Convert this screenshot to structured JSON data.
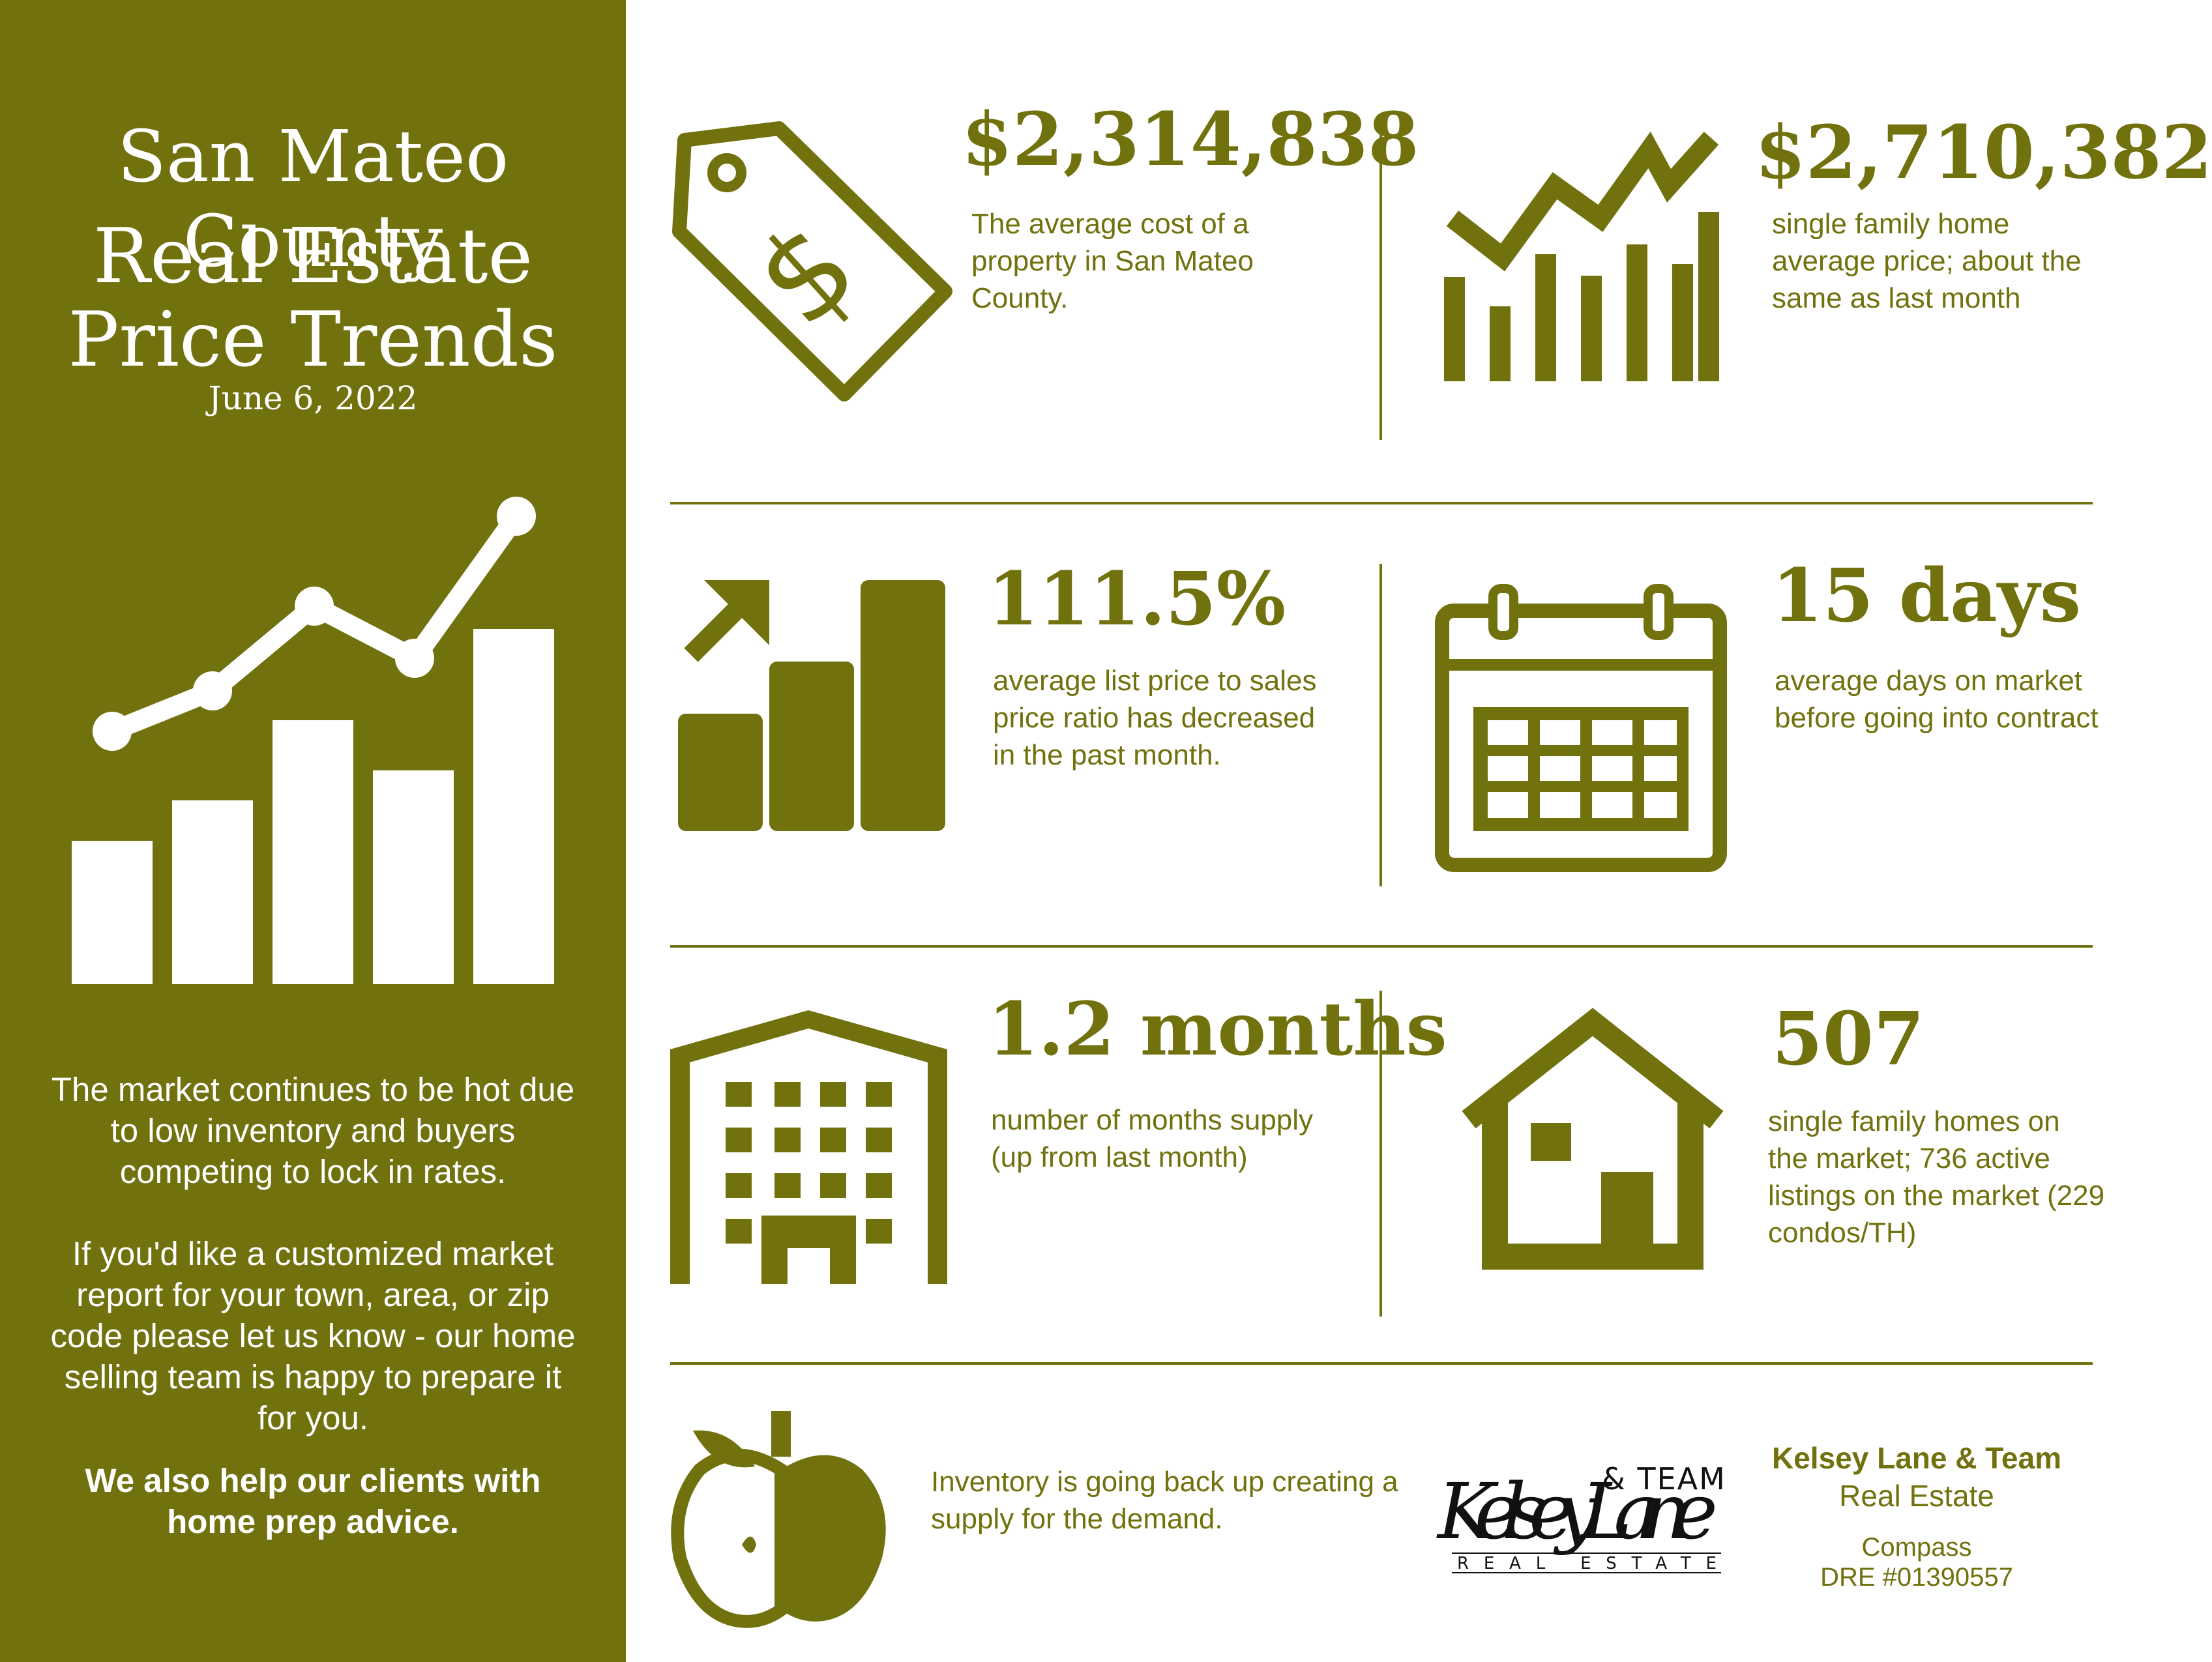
{
  "sidebar": {
    "title_line1": "San Mateo County",
    "title_line2": "Real Estate",
    "title_line3": "Price Trends",
    "date": "June 6, 2022",
    "paragraph1": "The market continues to be hot due to low inventory and buyers competing to lock in rates.",
    "paragraph2": "If you'd like a customized market report for your town, area, or zip code please let us know - our home selling team is happy to prepare it for you.",
    "paragraph3": "We also help our clients with home prep advice."
  },
  "stats": {
    "avg_cost": {
      "value": "$2,314,838",
      "desc": "The average cost of a property in San Mateo County.",
      "icon": "price-tag-icon"
    },
    "sfh_price": {
      "value": "$2,710,382",
      "desc": "single family home average price; about the same as last month",
      "icon": "bar-line-chart-icon"
    },
    "list_ratio": {
      "value": "111.5%",
      "desc": "average list price to sales price ratio has decreased in the past month.",
      "icon": "rising-bars-icon"
    },
    "days_market": {
      "value": "15 days",
      "desc": "average days on market before going into contract",
      "icon": "calendar-icon"
    },
    "months_supply": {
      "value": "1.2 months",
      "desc": "number of months supply (up from last month)",
      "icon": "building-icon"
    },
    "sfh_count": {
      "value": "507",
      "desc": "single family homes on the market; 736 active listings on the market (229 condos/TH)",
      "icon": "house-icon"
    }
  },
  "footer": {
    "icon": "apple-icon",
    "text": "Inventory is going back up creating a supply for the demand.",
    "logo": {
      "script": "KelseyLane",
      "team": "& TEAM",
      "sub": "REAL ESTATE"
    },
    "agent_name": "Kelsey Lane & Team",
    "agent_sub": "Real Estate",
    "brokerage": "Compass",
    "license": "DRE #01390557"
  },
  "colors": {
    "primary": "#71710e",
    "background": "#ffffff",
    "sidebar_text": "#ffffff"
  }
}
